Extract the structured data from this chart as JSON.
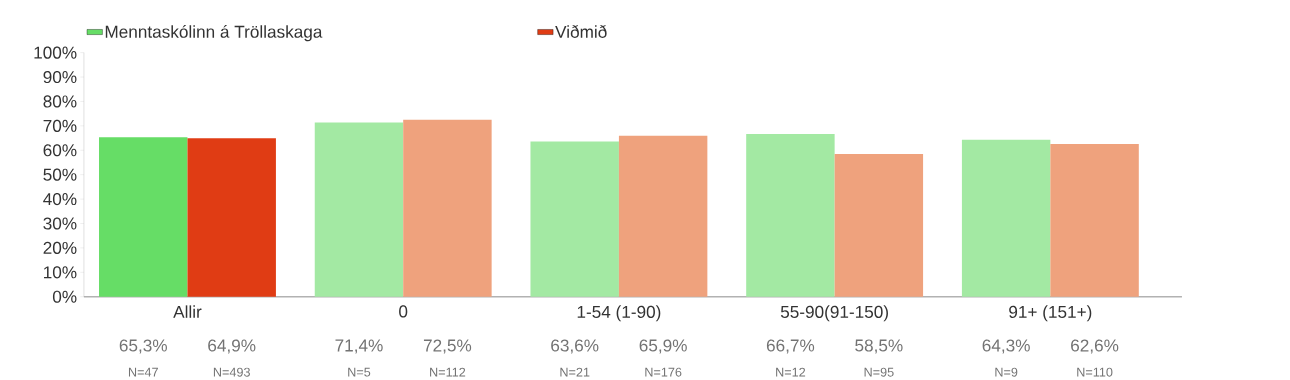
{
  "chart_data": {
    "type": "bar",
    "categories": [
      "Allir",
      "0",
      "1-54 (1-90)",
      "55-90(91-150)",
      "91+ (151+)"
    ],
    "series": [
      {
        "name": "Menntaskólinn á Tröllaskaga",
        "color": "#66dd66",
        "colors": [
          "#66dd66",
          "#a3e9a3",
          "#a3e9a3",
          "#a3e9a3",
          "#a3e9a3"
        ],
        "values": [
          65.3,
          71.4,
          63.6,
          66.7,
          64.3
        ],
        "value_labels": [
          "65,3%",
          "71,4%",
          "63,6%",
          "66,7%",
          "64,3%"
        ]
      },
      {
        "name": "Viðmið",
        "color": "#e03c14",
        "colors": [
          "#e03c14",
          "#efa27d",
          "#efa27d",
          "#efa27d",
          "#efa27d"
        ],
        "values": [
          64.9,
          72.5,
          65.9,
          58.5,
          62.6
        ],
        "value_labels": [
          "64,9%",
          "72,5%",
          "65,9%",
          "58,5%",
          "62,6%"
        ]
      }
    ],
    "ylim": [
      0,
      100
    ],
    "yticks": [
      {
        "value": 0,
        "label": "0%"
      },
      {
        "value": 10,
        "label": "10%"
      },
      {
        "value": 20,
        "label": "20%"
      },
      {
        "value": 30,
        "label": "30%"
      },
      {
        "value": 40,
        "label": "40%"
      },
      {
        "value": 50,
        "label": "50%"
      },
      {
        "value": 60,
        "label": "60%"
      },
      {
        "value": 70,
        "label": "70%"
      },
      {
        "value": 80,
        "label": "80%"
      },
      {
        "value": 90,
        "label": "90%"
      },
      {
        "value": 100,
        "label": "100%"
      }
    ],
    "legend": "top left",
    "annotations": [
      "N=47",
      "N=493",
      "N=5",
      "N=112",
      "N=21",
      "N=176",
      "N=12",
      "N=95",
      "N=9",
      "N=110"
    ]
  }
}
